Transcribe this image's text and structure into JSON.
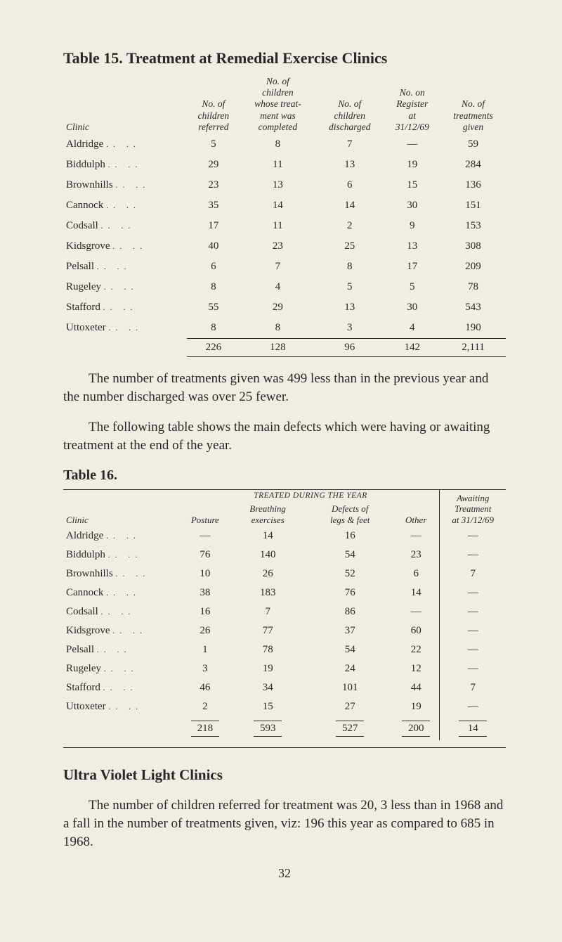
{
  "table15": {
    "title": "Table 15.  Treatment at Remedial Exercise Clinics",
    "columns": [
      "Clinic",
      "No. of children referred",
      "No. of children whose treat-ment was completed",
      "No. of children discharged",
      "No. on Register at 31/12/69",
      "No. of treatments given"
    ],
    "rows": [
      [
        "Aldridge",
        "5",
        "8",
        "7",
        "—",
        "59"
      ],
      [
        "Biddulph",
        "29",
        "11",
        "13",
        "19",
        "284"
      ],
      [
        "Brownhills",
        "23",
        "13",
        "6",
        "15",
        "136"
      ],
      [
        "Cannock",
        "35",
        "14",
        "14",
        "30",
        "151"
      ],
      [
        "Codsall",
        "17",
        "11",
        "2",
        "9",
        "153"
      ],
      [
        "Kidsgrove",
        "40",
        "23",
        "25",
        "13",
        "308"
      ],
      [
        "Pelsall",
        "6",
        "7",
        "8",
        "17",
        "209"
      ],
      [
        "Rugeley",
        "8",
        "4",
        "5",
        "5",
        "78"
      ],
      [
        "Stafford",
        "55",
        "29",
        "13",
        "30",
        "543"
      ],
      [
        "Uttoxeter",
        "8",
        "8",
        "3",
        "4",
        "190"
      ]
    ],
    "totals": [
      "",
      "226",
      "128",
      "96",
      "142",
      "2,111"
    ]
  },
  "para1": "The number of treatments given was 499 less than in the previous year and the number discharged was over 25 fewer.",
  "para2": "The following table shows the main defects which were having or awaiting treatment at the end of the year.",
  "table16": {
    "title": "Table 16.",
    "group_header": "TREATED DURING THE YEAR",
    "columns": [
      "Clinic",
      "Posture",
      "Breathing exercises",
      "Defects of legs & feet",
      "Other"
    ],
    "last_col_header": "Awaiting Treatment at 31/12/69",
    "rows": [
      [
        "Aldridge",
        "—",
        "14",
        "16",
        "—",
        "—"
      ],
      [
        "Biddulph",
        "76",
        "140",
        "54",
        "23",
        "—"
      ],
      [
        "Brownhills",
        "10",
        "26",
        "52",
        "6",
        "7"
      ],
      [
        "Cannock",
        "38",
        "183",
        "76",
        "14",
        "—"
      ],
      [
        "Codsall",
        "16",
        "7",
        "86",
        "—",
        "—"
      ],
      [
        "Kidsgrove",
        "26",
        "77",
        "37",
        "60",
        "—"
      ],
      [
        "Pelsall",
        "1",
        "78",
        "54",
        "22",
        "—"
      ],
      [
        "Rugeley",
        "3",
        "19",
        "24",
        "12",
        "—"
      ],
      [
        "Stafford",
        "46",
        "34",
        "101",
        "44",
        "7"
      ],
      [
        "Uttoxeter",
        "2",
        "15",
        "27",
        "19",
        "—"
      ]
    ],
    "totals": [
      "",
      "218",
      "593",
      "527",
      "200",
      "14"
    ]
  },
  "section": {
    "title": "Ultra Violet Light Clinics",
    "para": "The number of children referred for treatment was 20, 3 less than in 1968 and a fall in the number of treatments given, viz: 196 this year as compared to 685 in 1968."
  },
  "page": "32",
  "colors": {
    "background": "#f0ede6",
    "text": "#2a2824"
  },
  "typography": {
    "body_font": "Times New Roman serif",
    "title_fontsize_pt": 17,
    "body_fontsize_pt": 14,
    "table_fontsize_pt": 11
  }
}
